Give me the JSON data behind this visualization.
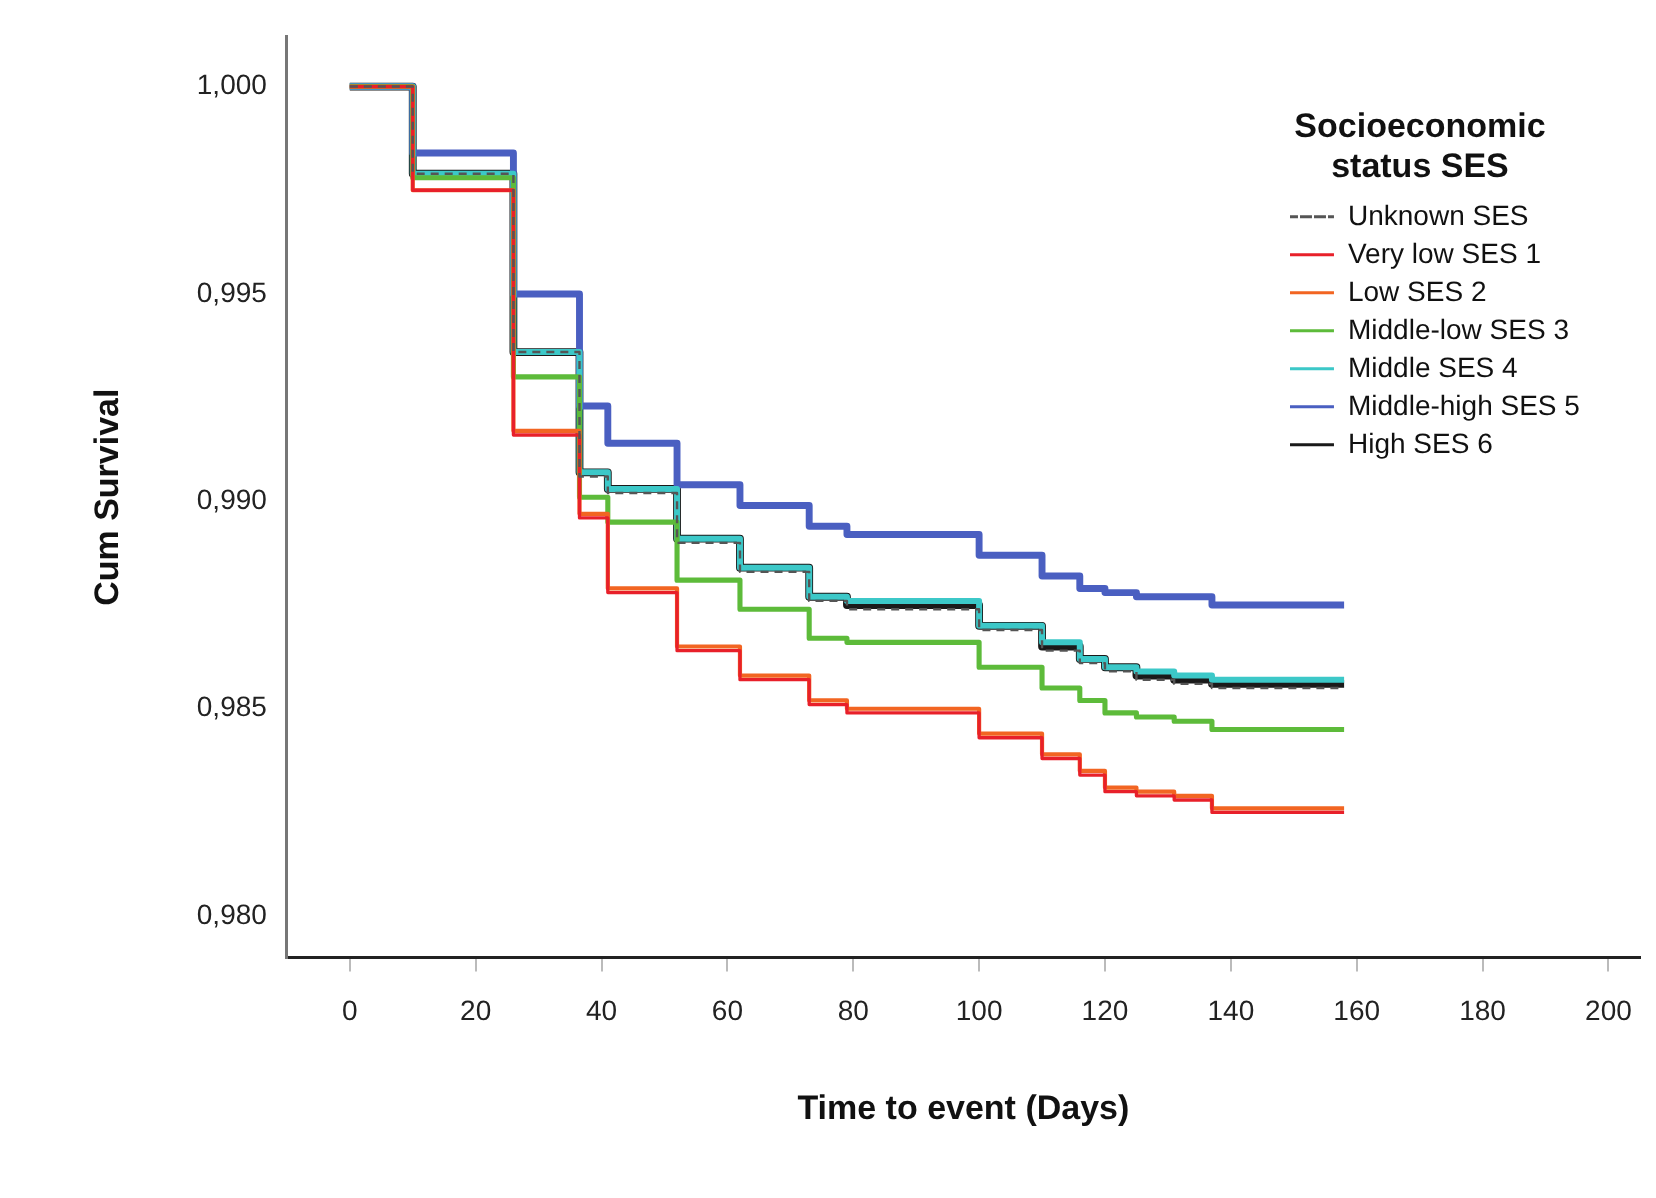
{
  "chart_data": {
    "type": "step",
    "xlabel": "Time to event (Days)",
    "ylabel": "Cum Survival",
    "legend_title": "Socioeconomic status SES",
    "legend": "top right",
    "grid": false,
    "marker": "none",
    "x": [
      0,
      10,
      26,
      36.5,
      41,
      52,
      62,
      73,
      79,
      100,
      110,
      116,
      120,
      125,
      131,
      137,
      158
    ],
    "xlim": [
      -10,
      205
    ],
    "xticks": [
      0,
      20,
      40,
      60,
      80,
      100,
      120,
      140,
      160,
      180,
      200
    ],
    "ylim": [
      0.979,
      1.0012
    ],
    "yticks": [
      {
        "value": 0.98,
        "label": "0,980"
      },
      {
        "value": 0.985,
        "label": "0,985"
      },
      {
        "value": 0.99,
        "label": "0,990"
      },
      {
        "value": 0.995,
        "label": "0,995"
      },
      {
        "value": 1,
        "label": "1,000"
      }
    ],
    "series": [
      {
        "name": "Unknown SES",
        "color": "#555555",
        "line_style": "dashed",
        "values": [
          1,
          0.9979,
          0.9936,
          0.9906,
          0.9902,
          0.989,
          0.9883,
          0.9876,
          0.9874,
          0.9869,
          0.9864,
          0.9861,
          0.9859,
          0.9857,
          0.9856,
          0.9855,
          0.9855
        ]
      },
      {
        "name": "Very low SES 1",
        "color": "#e8202a",
        "values": [
          1,
          0.9975,
          0.9916,
          0.9896,
          0.9878,
          0.9864,
          0.9857,
          0.9851,
          0.9849,
          0.9843,
          0.9838,
          0.9834,
          0.983,
          0.9829,
          0.9828,
          0.9825,
          0.9825
        ]
      },
      {
        "name": "Low SES 2",
        "color": "#f26522",
        "values": [
          1,
          0.9975,
          0.9917,
          0.9897,
          0.9879,
          0.9865,
          0.9858,
          0.9852,
          0.985,
          0.9844,
          0.9839,
          0.9835,
          0.9831,
          0.983,
          0.9829,
          0.9826,
          0.9826
        ]
      },
      {
        "name": "Middle-low SES 3",
        "color": "#5dbb3a",
        "values": [
          1,
          0.9978,
          0.993,
          0.9901,
          0.9895,
          0.9881,
          0.9874,
          0.9867,
          0.9866,
          0.986,
          0.9855,
          0.9852,
          0.9849,
          0.9848,
          0.9847,
          0.9845,
          0.9845
        ]
      },
      {
        "name": "Middle SES 4",
        "color": "#3cc8c8",
        "values": [
          1,
          0.9979,
          0.9936,
          0.9907,
          0.9903,
          0.9891,
          0.9884,
          0.9877,
          0.9876,
          0.987,
          0.9866,
          0.9862,
          0.986,
          0.9859,
          0.9858,
          0.9857,
          0.9857
        ]
      },
      {
        "name": "Middle-high SES 5",
        "color": "#4a5fc1",
        "values": [
          1,
          0.9984,
          0.995,
          0.9923,
          0.9914,
          0.9904,
          0.9899,
          0.9894,
          0.9892,
          0.9887,
          0.9882,
          0.9879,
          0.9878,
          0.9877,
          0.9877,
          0.9875,
          0.9875
        ]
      },
      {
        "name": "High SES 6",
        "color": "#1a1a1a",
        "values": [
          1,
          0.9979,
          0.9936,
          0.9907,
          0.9903,
          0.9891,
          0.9884,
          0.9877,
          0.9875,
          0.987,
          0.9865,
          0.9862,
          0.986,
          0.9858,
          0.9857,
          0.9856,
          0.9856
        ]
      }
    ]
  }
}
